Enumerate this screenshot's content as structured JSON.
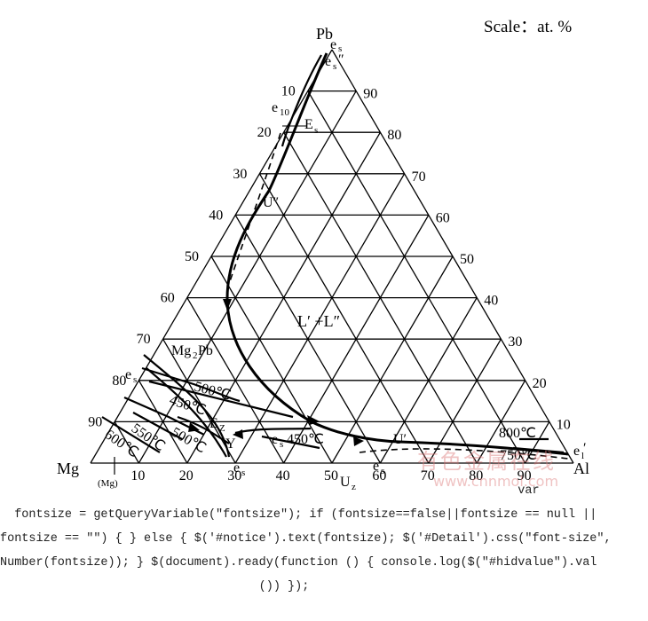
{
  "scale_label": "Scale：at. %",
  "vertices": {
    "top": "Pb",
    "left": "Mg",
    "right": "Al",
    "left_sub": "(Mg)"
  },
  "left_axis_ticks": [
    "90",
    "80",
    "70",
    "60",
    "50",
    "40",
    "30",
    "20",
    "10"
  ],
  "right_axis_ticks": [
    "90",
    "80",
    "70",
    "60",
    "50",
    "40",
    "30",
    "20",
    "10"
  ],
  "bottom_axis_ticks": [
    "10",
    "20",
    "30",
    "40",
    "50",
    "60",
    "70",
    "80",
    "90"
  ],
  "labels": {
    "es_top": "e",
    "es_top2": "e",
    "e10": "e",
    "Es": "E",
    "U2": "U″",
    "mg2pb": "Mg",
    "mg2pb_b": "Pb",
    "region": "L′ +L″",
    "t500": "500℃",
    "t450": "450℃",
    "t550": "550℃",
    "t600": "600℃",
    "t500b": "500℃",
    "t450b": "450℃",
    "Ez": "E",
    "Y": "Y",
    "es_left": "e",
    "es_mid": "e",
    "es_bot": "e",
    "es_bot2": "e",
    "Uz": "U",
    "U1": "U′",
    "t800": "800℃",
    "t750": "750℃",
    "e1": "e"
  },
  "watermark": {
    "line1": "有色金属在线",
    "line2": "www.cnnmol.com"
  },
  "code_lines": [
    "                                                                        var",
    "  fontsize = getQueryVariable(\"fontsize\"); if (fontsize==false||fontsize == null ||",
    "fontsize == \"\") { } else { $('#notice').text(fontsize); $('#Detail').css(\"font-size\",",
    "Number(fontsize)); } $(document).ready(function () { console.log($(\"#hidvalue\").val",
    "                                    ()) });"
  ]
}
